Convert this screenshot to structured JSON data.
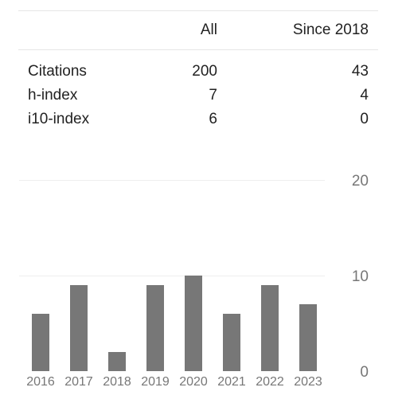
{
  "stats": {
    "headers": [
      "",
      "All",
      "Since 2018"
    ],
    "rows": [
      {
        "label": "Citations",
        "all": "200",
        "since": "43"
      },
      {
        "label": "h-index",
        "all": "7",
        "since": "4"
      },
      {
        "label": "i10-index",
        "all": "6",
        "since": "0"
      }
    ]
  },
  "chart_data": {
    "type": "bar",
    "categories": [
      "2016",
      "2017",
      "2018",
      "2019",
      "2020",
      "2021",
      "2022",
      "2023"
    ],
    "values": [
      6,
      9,
      2,
      9,
      10,
      6,
      9,
      7
    ],
    "ylim": [
      0,
      20
    ],
    "yticks": [
      "0",
      "10",
      "20"
    ],
    "grid": true,
    "bar_color": "#777777",
    "grid_color": "#eeeeee",
    "tick_color": "#777777"
  }
}
